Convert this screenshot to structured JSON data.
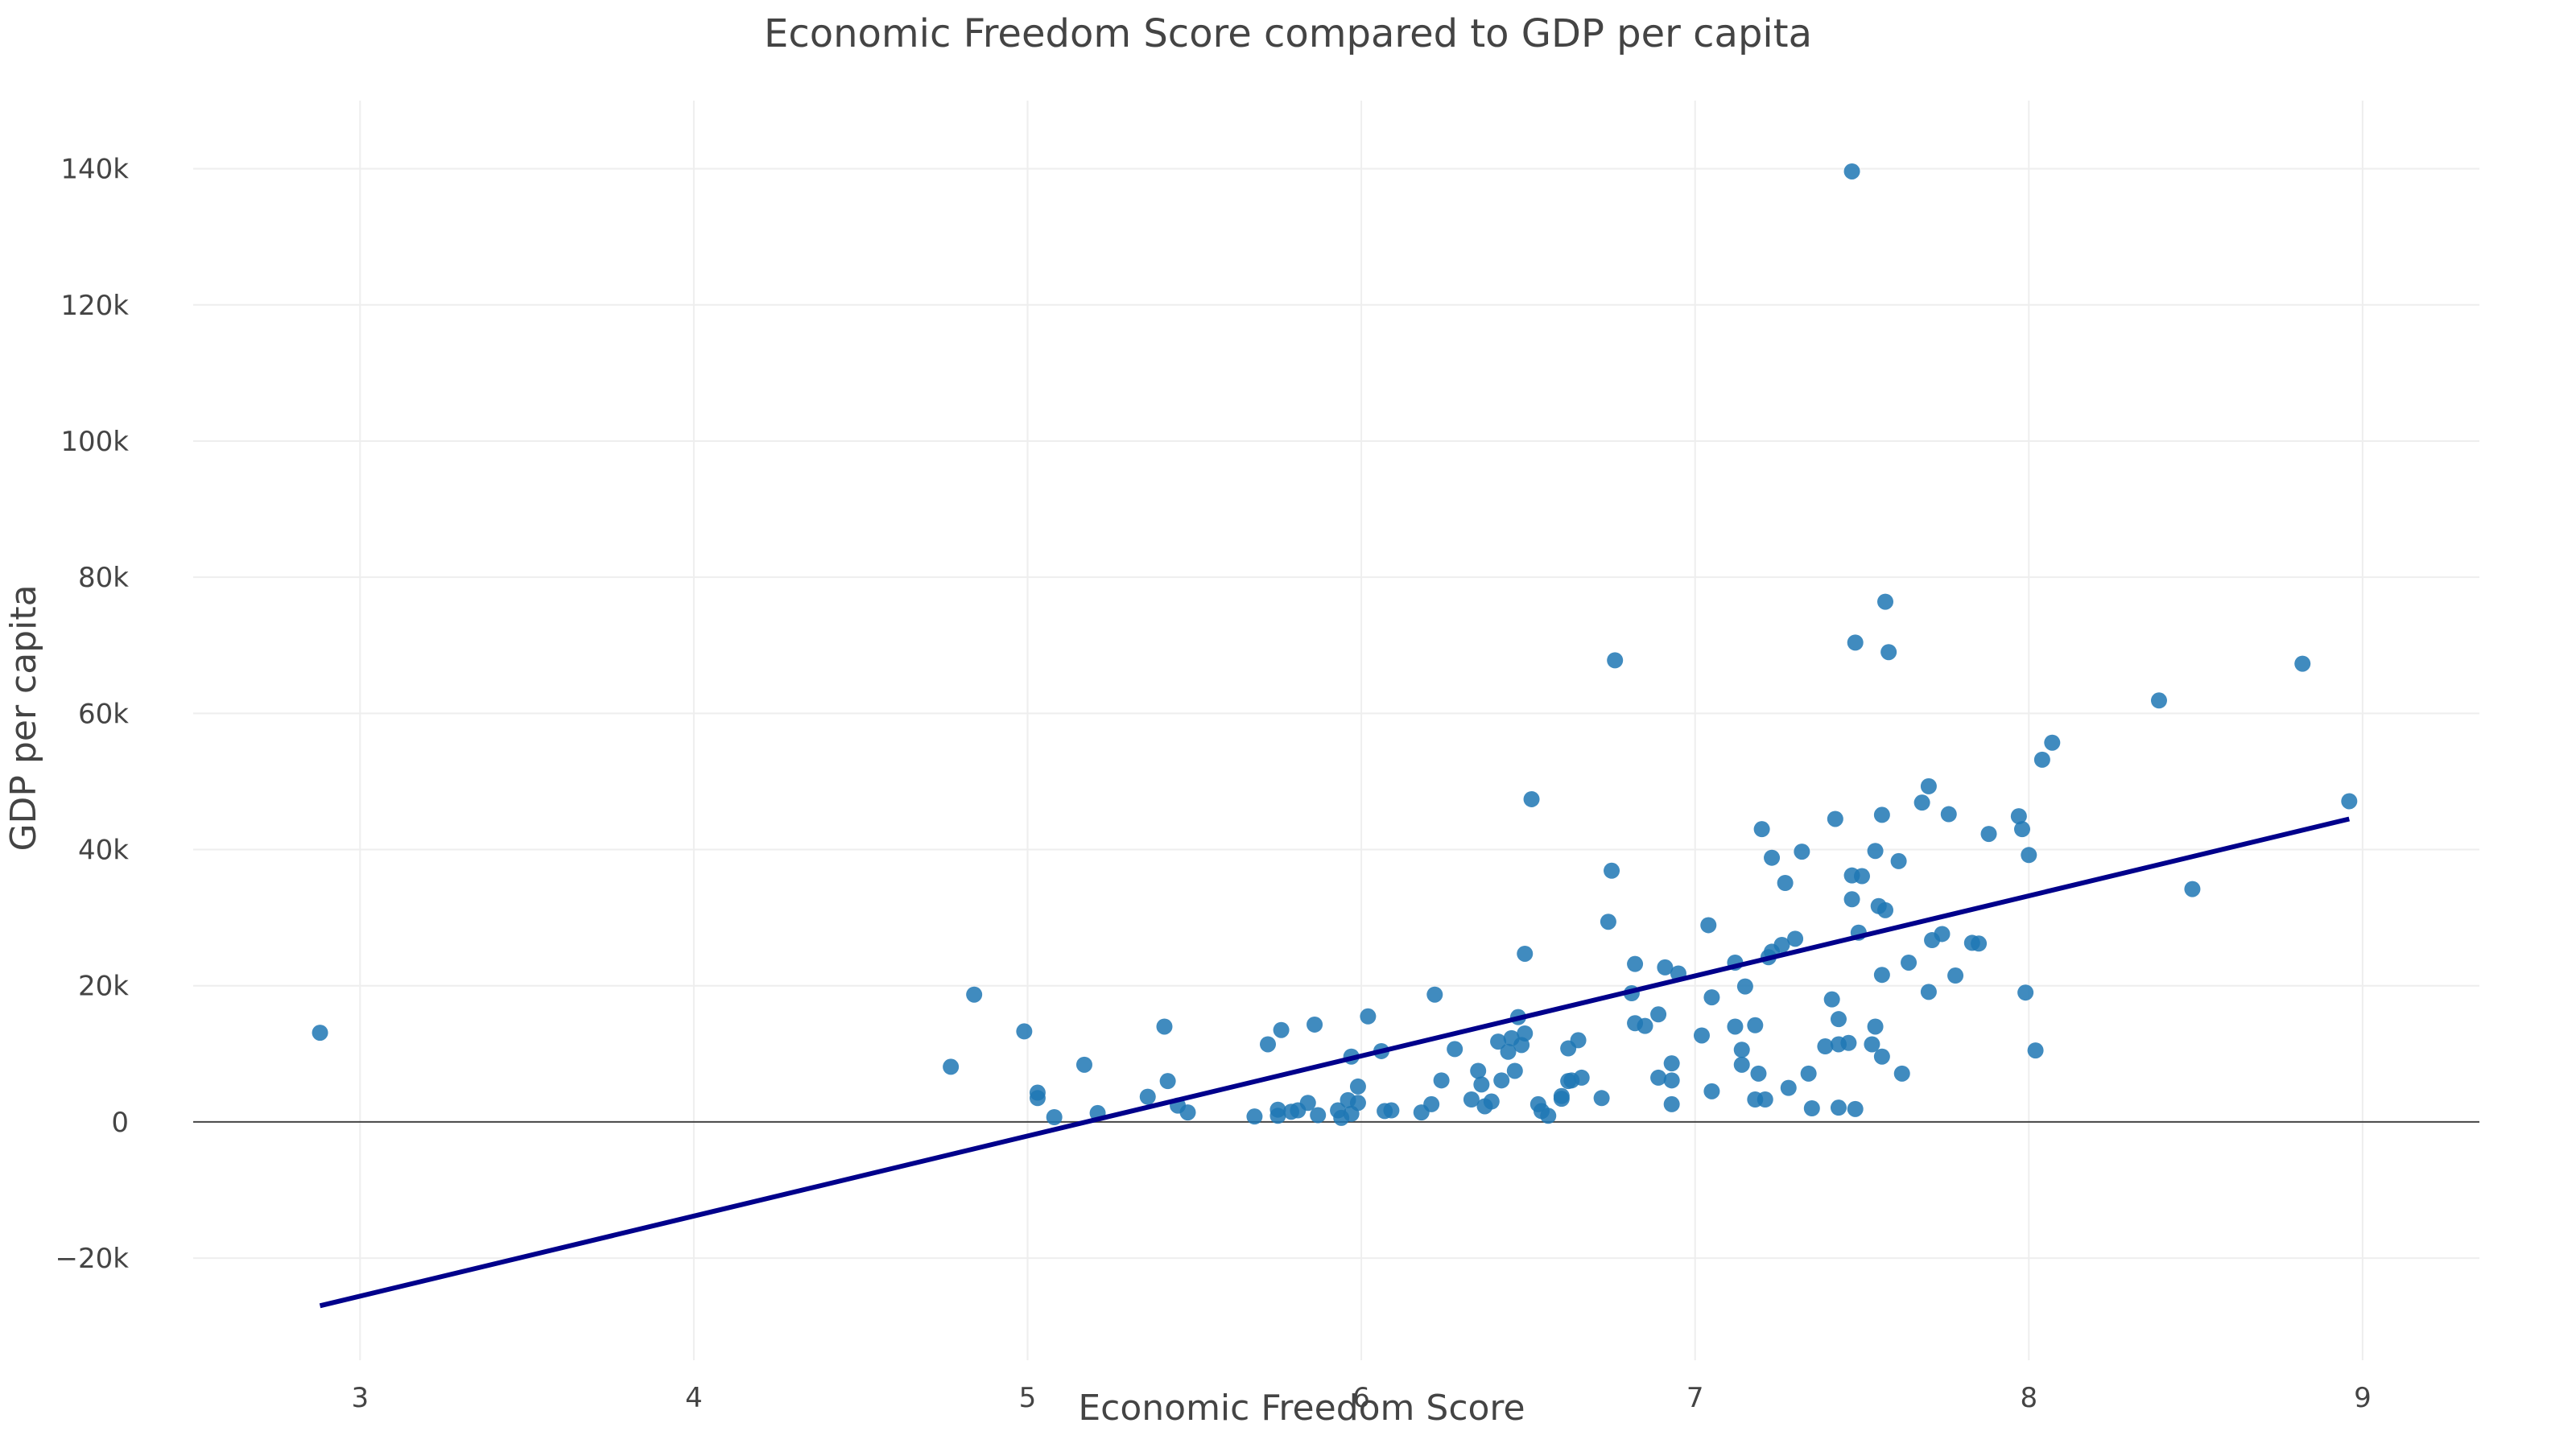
{
  "chart_data": {
    "type": "scatter",
    "title": "Economic Freedom Score compared to GDP per capita",
    "xlabel": "Economic Freedom Score",
    "ylabel": "GDP per capita",
    "xlim": [
      2.5,
      9.35
    ],
    "ylim": [
      -35000,
      150000
    ],
    "x_ticks": [
      3,
      4,
      5,
      6,
      7,
      8,
      9
    ],
    "y_ticks": [
      -20000,
      0,
      20000,
      40000,
      60000,
      80000,
      100000,
      120000,
      140000
    ],
    "y_tick_labels": [
      "−20k",
      "0",
      "20k",
      "40k",
      "60k",
      "80k",
      "100k",
      "120k",
      "140k"
    ],
    "grid": true,
    "colors": {
      "points": "#1f77b4",
      "trendline": "#00008b",
      "zero_line": "#444444",
      "grid": "#eeeeee"
    },
    "series": [
      {
        "mode": "markers",
        "points": [
          [
            2.88,
            13100
          ],
          [
            4.77,
            8100
          ],
          [
            4.84,
            18700
          ],
          [
            4.99,
            13300
          ],
          [
            5.03,
            4300
          ],
          [
            5.03,
            3500
          ],
          [
            5.08,
            700
          ],
          [
            5.17,
            8400
          ],
          [
            5.21,
            1300
          ],
          [
            5.36,
            3700
          ],
          [
            5.41,
            14000
          ],
          [
            5.42,
            6000
          ],
          [
            5.45,
            2400
          ],
          [
            5.48,
            1400
          ],
          [
            5.68,
            800
          ],
          [
            5.72,
            11400
          ],
          [
            5.75,
            1800
          ],
          [
            5.75,
            900
          ],
          [
            5.76,
            13500
          ],
          [
            5.79,
            1500
          ],
          [
            5.81,
            1700
          ],
          [
            5.84,
            2800
          ],
          [
            5.86,
            14300
          ],
          [
            5.87,
            1000
          ],
          [
            5.93,
            1700
          ],
          [
            5.94,
            600
          ],
          [
            5.96,
            3200
          ],
          [
            5.97,
            9600
          ],
          [
            5.97,
            1200
          ],
          [
            5.99,
            2800
          ],
          [
            5.99,
            5200
          ],
          [
            6.02,
            15500
          ],
          [
            6.06,
            10400
          ],
          [
            6.07,
            1600
          ],
          [
            6.09,
            1700
          ],
          [
            6.18,
            1400
          ],
          [
            6.21,
            2600
          ],
          [
            6.22,
            18700
          ],
          [
            6.24,
            6100
          ],
          [
            6.28,
            10700
          ],
          [
            6.33,
            3300
          ],
          [
            6.35,
            7500
          ],
          [
            6.36,
            5500
          ],
          [
            6.37,
            2300
          ],
          [
            6.39,
            3000
          ],
          [
            6.41,
            11800
          ],
          [
            6.42,
            6100
          ],
          [
            6.44,
            10300
          ],
          [
            6.45,
            12300
          ],
          [
            6.46,
            7500
          ],
          [
            6.47,
            15400
          ],
          [
            6.48,
            11300
          ],
          [
            6.49,
            24700
          ],
          [
            6.49,
            13000
          ],
          [
            6.51,
            47400
          ],
          [
            6.53,
            2600
          ],
          [
            6.54,
            1600
          ],
          [
            6.56,
            900
          ],
          [
            6.6,
            3800
          ],
          [
            6.6,
            3400
          ],
          [
            6.62,
            10800
          ],
          [
            6.62,
            6000
          ],
          [
            6.63,
            6100
          ],
          [
            6.65,
            12000
          ],
          [
            6.66,
            6500
          ],
          [
            6.72,
            3500
          ],
          [
            6.74,
            29400
          ],
          [
            6.75,
            36900
          ],
          [
            6.76,
            67800
          ],
          [
            6.81,
            18900
          ],
          [
            6.82,
            23200
          ],
          [
            6.82,
            14500
          ],
          [
            6.85,
            14100
          ],
          [
            6.89,
            15800
          ],
          [
            6.89,
            6500
          ],
          [
            6.91,
            22700
          ],
          [
            6.93,
            8600
          ],
          [
            6.93,
            2600
          ],
          [
            6.93,
            6100
          ],
          [
            6.95,
            21800
          ],
          [
            7.02,
            12700
          ],
          [
            7.04,
            28900
          ],
          [
            7.05,
            18300
          ],
          [
            7.05,
            4500
          ],
          [
            7.12,
            23400
          ],
          [
            7.12,
            14000
          ],
          [
            7.14,
            8400
          ],
          [
            7.14,
            10600
          ],
          [
            7.15,
            19900
          ],
          [
            7.18,
            14200
          ],
          [
            7.18,
            3300
          ],
          [
            7.19,
            7100
          ],
          [
            7.2,
            43000
          ],
          [
            7.21,
            3300
          ],
          [
            7.22,
            24200
          ],
          [
            7.23,
            38800
          ],
          [
            7.23,
            25000
          ],
          [
            7.26,
            26000
          ],
          [
            7.27,
            35100
          ],
          [
            7.28,
            5000
          ],
          [
            7.3,
            26900
          ],
          [
            7.32,
            39700
          ],
          [
            7.34,
            7100
          ],
          [
            7.35,
            2000
          ],
          [
            7.39,
            11100
          ],
          [
            7.41,
            18000
          ],
          [
            7.42,
            44500
          ],
          [
            7.43,
            15100
          ],
          [
            7.43,
            11400
          ],
          [
            7.43,
            2100
          ],
          [
            7.46,
            11600
          ],
          [
            7.47,
            36200
          ],
          [
            7.47,
            139600
          ],
          [
            7.47,
            32700
          ],
          [
            7.48,
            1900
          ],
          [
            7.48,
            70400
          ],
          [
            7.49,
            27800
          ],
          [
            7.5,
            36100
          ],
          [
            7.53,
            11400
          ],
          [
            7.54,
            39800
          ],
          [
            7.54,
            14000
          ],
          [
            7.55,
            31700
          ],
          [
            7.56,
            21600
          ],
          [
            7.56,
            45100
          ],
          [
            7.56,
            9600
          ],
          [
            7.57,
            76400
          ],
          [
            7.57,
            31100
          ],
          [
            7.58,
            69000
          ],
          [
            7.61,
            38300
          ],
          [
            7.62,
            7100
          ],
          [
            7.64,
            23400
          ],
          [
            7.68,
            46900
          ],
          [
            7.7,
            49300
          ],
          [
            7.7,
            19100
          ],
          [
            7.71,
            26700
          ],
          [
            7.74,
            27600
          ],
          [
            7.76,
            45200
          ],
          [
            7.78,
            21500
          ],
          [
            7.83,
            26300
          ],
          [
            7.85,
            26200
          ],
          [
            7.88,
            42300
          ],
          [
            7.97,
            44900
          ],
          [
            7.98,
            43000
          ],
          [
            7.99,
            19000
          ],
          [
            8.0,
            39200
          ],
          [
            8.02,
            10500
          ],
          [
            8.04,
            53200
          ],
          [
            8.07,
            55700
          ],
          [
            8.39,
            61900
          ],
          [
            8.49,
            34200
          ],
          [
            8.82,
            67300
          ],
          [
            8.96,
            47100
          ]
        ]
      },
      {
        "mode": "lines",
        "points": [
          [
            2.88,
            -27000
          ],
          [
            8.96,
            44500
          ]
        ]
      }
    ]
  }
}
